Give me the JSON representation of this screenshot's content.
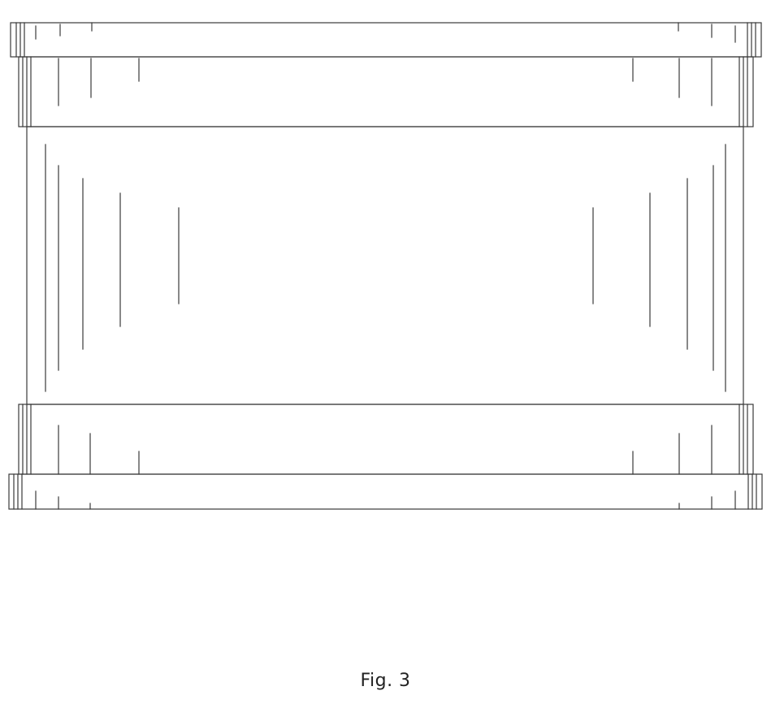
{
  "figure": {
    "caption": "Fig. 3"
  },
  "style": {
    "stroke_color": "#3a3a3a",
    "background": "#ffffff"
  }
}
